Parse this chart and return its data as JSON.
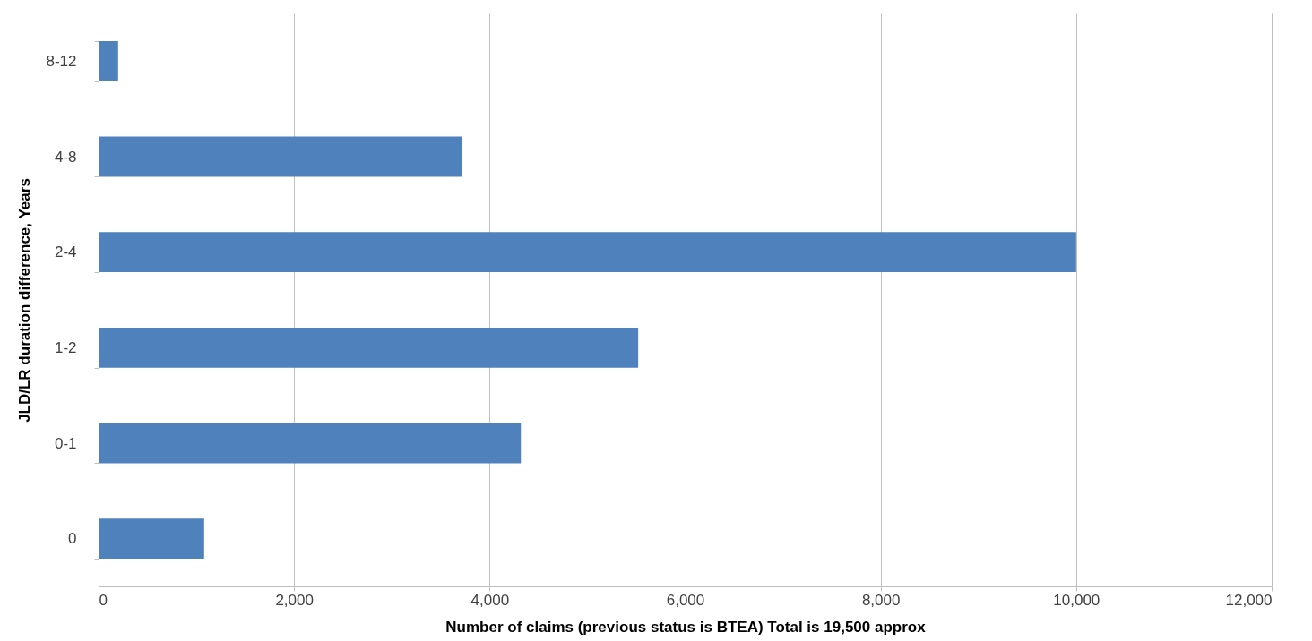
{
  "chart_data": {
    "type": "bar",
    "orientation": "horizontal",
    "categories": [
      "8-12",
      "4-8",
      "2-4",
      "1-2",
      "0-1",
      "0"
    ],
    "values": [
      200,
      3720,
      10000,
      5520,
      4320,
      1080
    ],
    "color": "#4f81bd",
    "xlabel": "Number of claims (previous status is BTEA) Total is 19,500 approx",
    "ylabel": "JLD/LR duration difference, Years",
    "xlim": [
      0,
      12000
    ],
    "xticks": [
      0,
      {
        "value": 2000,
        "label": "2,000"
      },
      {
        "value": 4000,
        "label": "4,000"
      },
      {
        "value": 6000,
        "label": "6,000"
      },
      {
        "value": 8000,
        "label": "8,000"
      },
      {
        "value": 10000,
        "label": "10,000"
      },
      {
        "value": 12000,
        "label": "12,000"
      }
    ],
    "grid": "x"
  }
}
